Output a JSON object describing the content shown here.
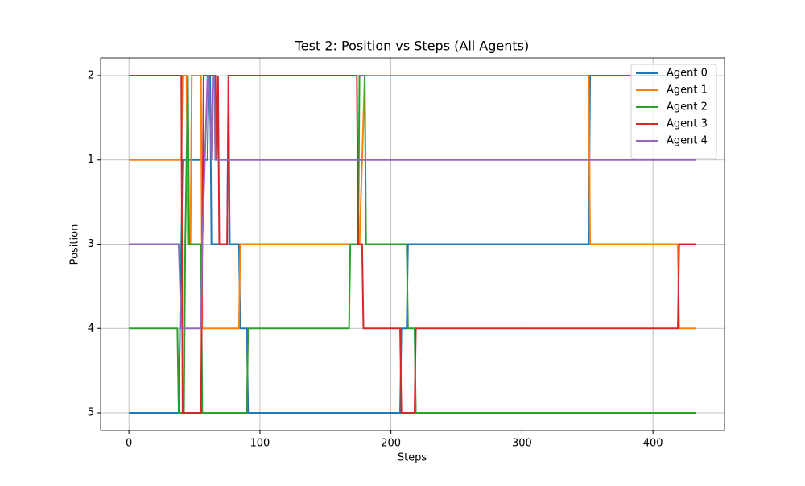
{
  "chart_data": {
    "type": "line",
    "title": "Test 2: Position vs Steps (All Agents)",
    "x_label": "Steps",
    "y_label": "Position",
    "xlim": [
      -21.6,
      454.6
    ],
    "xticks": [
      0,
      100,
      200,
      300,
      400
    ],
    "y_categories": [
      5,
      4,
      3,
      1,
      2
    ],
    "grid": true,
    "legend": "upper right",
    "series": [
      {
        "name": "Agent 0",
        "color": "#1f77b4",
        "x": [
          0,
          38,
          39,
          41,
          60,
          61,
          62,
          63,
          75,
          76,
          77,
          84,
          85,
          90,
          91,
          207,
          208,
          212,
          213,
          351,
          352,
          433
        ],
        "values": [
          5,
          5,
          4,
          1,
          1,
          2,
          2,
          3,
          3,
          2,
          3,
          3,
          4,
          4,
          5,
          5,
          4,
          4,
          3,
          3,
          2,
          2
        ]
      },
      {
        "name": "Agent 1",
        "color": "#ff7f0e",
        "x": [
          0,
          40,
          41,
          44,
          45,
          47,
          48,
          55,
          56,
          84,
          85,
          176,
          180,
          351,
          352,
          419,
          420,
          433
        ],
        "values": [
          1,
          1,
          2,
          2,
          3,
          3,
          2,
          2,
          4,
          4,
          3,
          3,
          2,
          2,
          3,
          3,
          4,
          4
        ]
      },
      {
        "name": "Agent 2",
        "color": "#2ca02c",
        "x": [
          0,
          37,
          38,
          42,
          43,
          45,
          46,
          55,
          56,
          90,
          91,
          168,
          169,
          175,
          176,
          180,
          181,
          212,
          213,
          218,
          219,
          433
        ],
        "values": [
          4,
          4,
          5,
          5,
          3,
          2,
          3,
          3,
          5,
          5,
          4,
          4,
          3,
          3,
          2,
          2,
          3,
          3,
          4,
          4,
          5,
          5
        ]
      },
      {
        "name": "Agent 3",
        "color": "#d62728",
        "x": [
          0,
          40,
          41,
          55,
          56,
          57,
          58,
          66,
          67,
          68,
          69,
          75,
          76,
          174,
          175,
          178,
          179,
          207,
          208,
          218,
          219,
          419,
          420,
          433
        ],
        "values": [
          2,
          2,
          5,
          5,
          3,
          2,
          2,
          2,
          1,
          2,
          3,
          3,
          2,
          2,
          3,
          3,
          4,
          4,
          5,
          5,
          4,
          4,
          3,
          3
        ]
      },
      {
        "name": "Agent 4",
        "color": "#9467bd",
        "x": [
          0,
          38,
          40,
          55,
          56,
          60,
          61,
          63,
          64,
          65,
          66,
          67,
          433
        ],
        "values": [
          3,
          3,
          4,
          4,
          3,
          2,
          2,
          1,
          2,
          2,
          1,
          1,
          1
        ]
      }
    ]
  }
}
